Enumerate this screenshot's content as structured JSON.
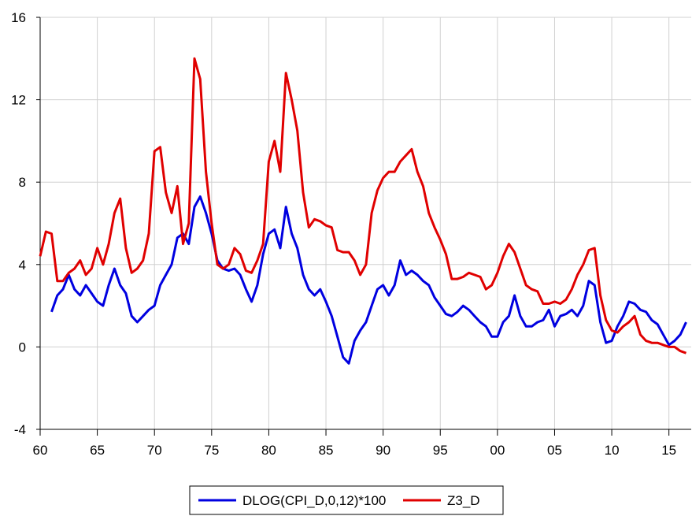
{
  "chart_data": {
    "type": "line",
    "x": [
      1960,
      1960.5,
      1961,
      1961.5,
      1962,
      1962.5,
      1963,
      1963.5,
      1964,
      1964.5,
      1965,
      1965.5,
      1966,
      1966.5,
      1967,
      1967.5,
      1968,
      1968.5,
      1969,
      1969.5,
      1970,
      1970.5,
      1971,
      1971.5,
      1972,
      1972.5,
      1973,
      1973.5,
      1974,
      1974.5,
      1975,
      1975.5,
      1976,
      1976.5,
      1977,
      1977.5,
      1978,
      1978.5,
      1979,
      1979.5,
      1980,
      1980.5,
      1981,
      1981.5,
      1982,
      1982.5,
      1983,
      1983.5,
      1984,
      1984.5,
      1985,
      1985.5,
      1986,
      1986.5,
      1987,
      1987.5,
      1988,
      1988.5,
      1989,
      1989.5,
      1990,
      1990.5,
      1991,
      1991.5,
      1992,
      1992.5,
      1993,
      1993.5,
      1994,
      1994.5,
      1995,
      1995.5,
      1996,
      1996.5,
      1997,
      1997.5,
      1998,
      1998.5,
      1999,
      1999.5,
      2000,
      2000.5,
      2001,
      2001.5,
      2002,
      2002.5,
      2003,
      2003.5,
      2004,
      2004.5,
      2005,
      2005.5,
      2006,
      2006.5,
      2007,
      2007.5,
      2008,
      2008.5,
      2009,
      2009.5,
      2010,
      2010.5,
      2011,
      2011.5,
      2012,
      2012.5,
      2013,
      2013.5,
      2014,
      2014.5,
      2015,
      2015.5,
      2016,
      2016.5
    ],
    "series": [
      {
        "name": "DLOG(CPI_D,0,12)*100",
        "color": "#0000e0",
        "values": [
          null,
          null,
          1.7,
          2.5,
          2.8,
          3.5,
          2.8,
          2.5,
          3.0,
          2.6,
          2.2,
          2.0,
          3.0,
          3.8,
          3.0,
          2.6,
          1.5,
          1.2,
          1.5,
          1.8,
          2.0,
          3.0,
          3.5,
          4.0,
          5.3,
          5.5,
          5.0,
          6.8,
          7.3,
          6.5,
          5.5,
          4.2,
          3.8,
          3.7,
          3.8,
          3.5,
          2.8,
          2.2,
          3.0,
          4.5,
          5.5,
          5.7,
          4.8,
          6.8,
          5.5,
          4.8,
          3.5,
          2.8,
          2.5,
          2.8,
          2.2,
          1.5,
          0.5,
          -0.5,
          -0.8,
          0.3,
          0.8,
          1.2,
          2.0,
          2.8,
          3.0,
          2.5,
          3.0,
          4.2,
          3.5,
          3.7,
          3.5,
          3.2,
          3.0,
          2.4,
          2.0,
          1.6,
          1.5,
          1.7,
          2.0,
          1.8,
          1.5,
          1.2,
          1.0,
          0.5,
          0.5,
          1.2,
          1.5,
          2.5,
          1.5,
          1.0,
          1.0,
          1.2,
          1.3,
          1.8,
          1.0,
          1.5,
          1.6,
          1.8,
          1.5,
          2.0,
          3.2,
          3.0,
          1.2,
          0.2,
          0.3,
          1.0,
          1.5,
          2.2,
          2.1,
          1.8,
          1.7,
          1.3,
          1.1,
          0.6,
          0.1,
          0.3,
          0.6,
          1.2
        ]
      },
      {
        "name": "Z3_D",
        "color": "#e00000",
        "values": [
          4.4,
          5.6,
          5.5,
          3.2,
          3.2,
          3.6,
          3.8,
          4.2,
          3.5,
          3.8,
          4.8,
          4.0,
          5.0,
          6.5,
          7.2,
          4.8,
          3.6,
          3.8,
          4.2,
          5.5,
          9.5,
          9.7,
          7.5,
          6.5,
          7.8,
          5.0,
          6.0,
          14.0,
          13.0,
          8.5,
          6.0,
          4.0,
          3.8,
          4.0,
          4.8,
          4.5,
          3.7,
          3.6,
          4.2,
          5.0,
          9.0,
          10.0,
          8.5,
          13.3,
          12.0,
          10.5,
          7.5,
          5.8,
          6.2,
          6.1,
          5.9,
          5.8,
          4.7,
          4.6,
          4.6,
          4.2,
          3.5,
          4.0,
          6.5,
          7.6,
          8.2,
          8.5,
          8.5,
          9.0,
          9.3,
          9.6,
          8.5,
          7.8,
          6.5,
          5.8,
          5.2,
          4.5,
          3.3,
          3.3,
          3.4,
          3.6,
          3.5,
          3.4,
          2.8,
          3.0,
          3.6,
          4.4,
          5.0,
          4.6,
          3.8,
          3.0,
          2.8,
          2.7,
          2.1,
          2.1,
          2.2,
          2.1,
          2.3,
          2.8,
          3.5,
          4.0,
          4.7,
          4.8,
          2.5,
          1.3,
          0.8,
          0.7,
          1.0,
          1.2,
          1.5,
          0.6,
          0.3,
          0.2,
          0.2,
          0.1,
          0.0,
          0.0,
          -0.2,
          -0.3
        ]
      }
    ],
    "xlim": [
      1960,
      2016.95
    ],
    "xticks": [
      {
        "value": 1960,
        "label": "60"
      },
      {
        "value": 1965,
        "label": "65"
      },
      {
        "value": 1970,
        "label": "70"
      },
      {
        "value": 1975,
        "label": "75"
      },
      {
        "value": 1980,
        "label": "80"
      },
      {
        "value": 1985,
        "label": "85"
      },
      {
        "value": 1990,
        "label": "90"
      },
      {
        "value": 1995,
        "label": "95"
      },
      {
        "value": 2000,
        "label": "00"
      },
      {
        "value": 2005,
        "label": "05"
      },
      {
        "value": 2010,
        "label": "10"
      },
      {
        "value": 2015,
        "label": "15"
      }
    ],
    "ylim": [
      -4,
      16
    ],
    "yticks": [
      -4,
      0,
      4,
      8,
      12,
      16
    ],
    "grid": true
  }
}
